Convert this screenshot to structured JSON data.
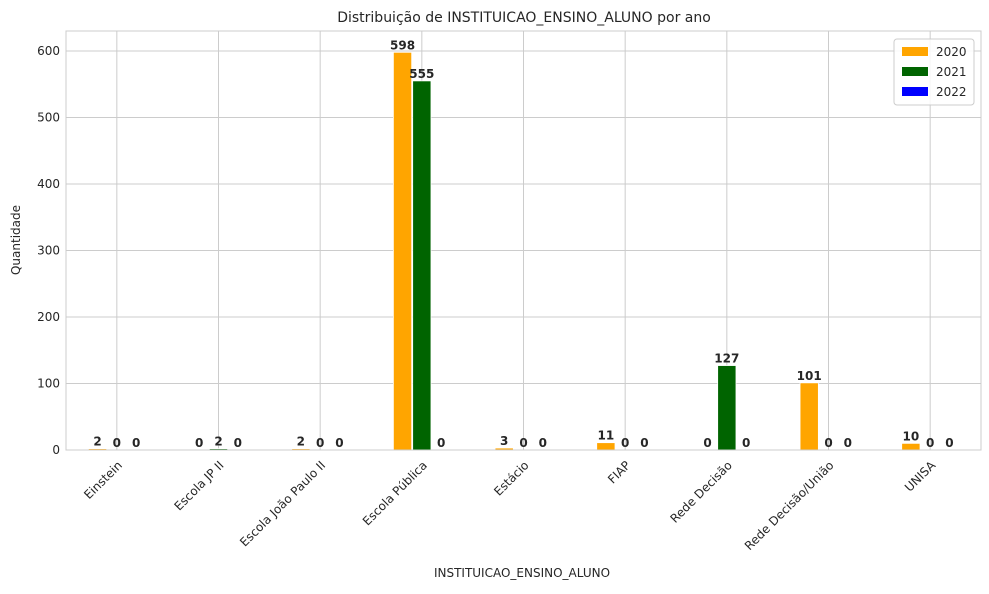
{
  "chart_data": {
    "type": "bar",
    "title": "Distribuição de INSTITUICAO_ENSINO_ALUNO por ano",
    "xlabel": "INSTITUICAO_ENSINO_ALUNO",
    "ylabel": "Quantidade",
    "categories": [
      "Einstein",
      "Escola JP II",
      "Escola João Paulo II",
      "Escola Pública",
      "Estácio",
      "FIAP",
      "Rede Decisão",
      "Rede Decisão/União",
      "UNISA"
    ],
    "series": [
      {
        "name": "2020",
        "color": "#ffa500",
        "values": [
          2,
          0,
          2,
          598,
          3,
          11,
          0,
          101,
          10
        ]
      },
      {
        "name": "2021",
        "color": "#006400",
        "values": [
          0,
          2,
          0,
          555,
          0,
          0,
          127,
          0,
          0
        ]
      },
      {
        "name": "2022",
        "color": "#0000ff",
        "values": [
          0,
          0,
          0,
          0,
          0,
          0,
          0,
          0,
          0
        ]
      }
    ],
    "ylim": [
      0,
      630
    ],
    "yticks": [
      0,
      100,
      200,
      300,
      400,
      500,
      600
    ],
    "grid": true,
    "legend_position": "top-right"
  }
}
